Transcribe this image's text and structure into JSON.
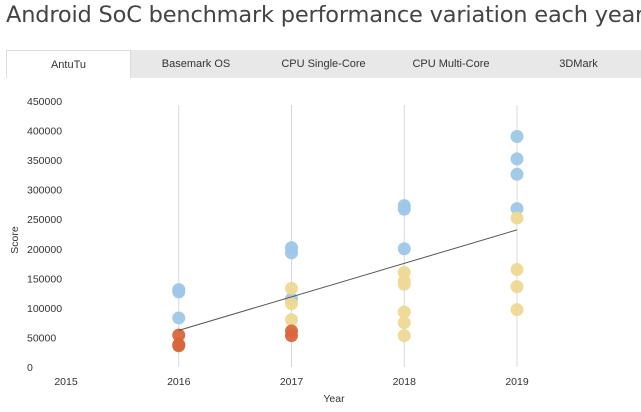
{
  "page": {
    "title": "Android SoC benchmark performance variation each year"
  },
  "tabs": [
    {
      "label": "AntuTu",
      "active": true
    },
    {
      "label": "Basemark OS",
      "active": false
    },
    {
      "label": "CPU Single-Core",
      "active": false
    },
    {
      "label": "CPU Multi-Core",
      "active": false
    },
    {
      "label": "3DMark",
      "active": false
    }
  ],
  "chart_data": {
    "type": "scatter",
    "title": "",
    "xlabel": "Year",
    "ylabel": "Score",
    "x_ticks": [
      2015,
      2016,
      2017,
      2018,
      2019
    ],
    "y_ticks": [
      0,
      50000,
      100000,
      150000,
      200000,
      250000,
      300000,
      350000,
      400000,
      450000
    ],
    "xlim": [
      2015,
      2019
    ],
    "ylim": [
      0,
      450000
    ],
    "grid": "vertical",
    "legend": "none",
    "colors": {
      "blue": "#9dc7e8",
      "yellow": "#efd895",
      "orange": "#d9663b",
      "trend": "#555555"
    },
    "groups": [
      {
        "color": "blue",
        "points": [
          {
            "x": 2016,
            "y": 131000
          },
          {
            "x": 2016,
            "y": 127000
          },
          {
            "x": 2016,
            "y": 83000
          },
          {
            "x": 2017,
            "y": 202000
          },
          {
            "x": 2017,
            "y": 193000
          },
          {
            "x": 2017,
            "y": 115000
          },
          {
            "x": 2018,
            "y": 273000
          },
          {
            "x": 2018,
            "y": 267000
          },
          {
            "x": 2018,
            "y": 200000
          },
          {
            "x": 2019,
            "y": 390000
          },
          {
            "x": 2019,
            "y": 352000
          },
          {
            "x": 2019,
            "y": 326000
          },
          {
            "x": 2019,
            "y": 268000
          }
        ]
      },
      {
        "color": "yellow",
        "points": [
          {
            "x": 2017,
            "y": 133000
          },
          {
            "x": 2017,
            "y": 107000
          },
          {
            "x": 2017,
            "y": 80000
          },
          {
            "x": 2018,
            "y": 160000
          },
          {
            "x": 2018,
            "y": 145000
          },
          {
            "x": 2018,
            "y": 140000
          },
          {
            "x": 2018,
            "y": 93000
          },
          {
            "x": 2018,
            "y": 75000
          },
          {
            "x": 2018,
            "y": 53000
          },
          {
            "x": 2019,
            "y": 252000
          },
          {
            "x": 2019,
            "y": 165000
          },
          {
            "x": 2019,
            "y": 136000
          },
          {
            "x": 2019,
            "y": 97000
          }
        ]
      },
      {
        "color": "orange",
        "points": [
          {
            "x": 2016,
            "y": 54000
          },
          {
            "x": 2016,
            "y": 38000
          },
          {
            "x": 2016,
            "y": 36000
          },
          {
            "x": 2017,
            "y": 61000
          },
          {
            "x": 2017,
            "y": 53000
          }
        ]
      }
    ],
    "trendline": {
      "x": [
        2016,
        2019
      ],
      "y": [
        62000,
        232000
      ]
    }
  }
}
